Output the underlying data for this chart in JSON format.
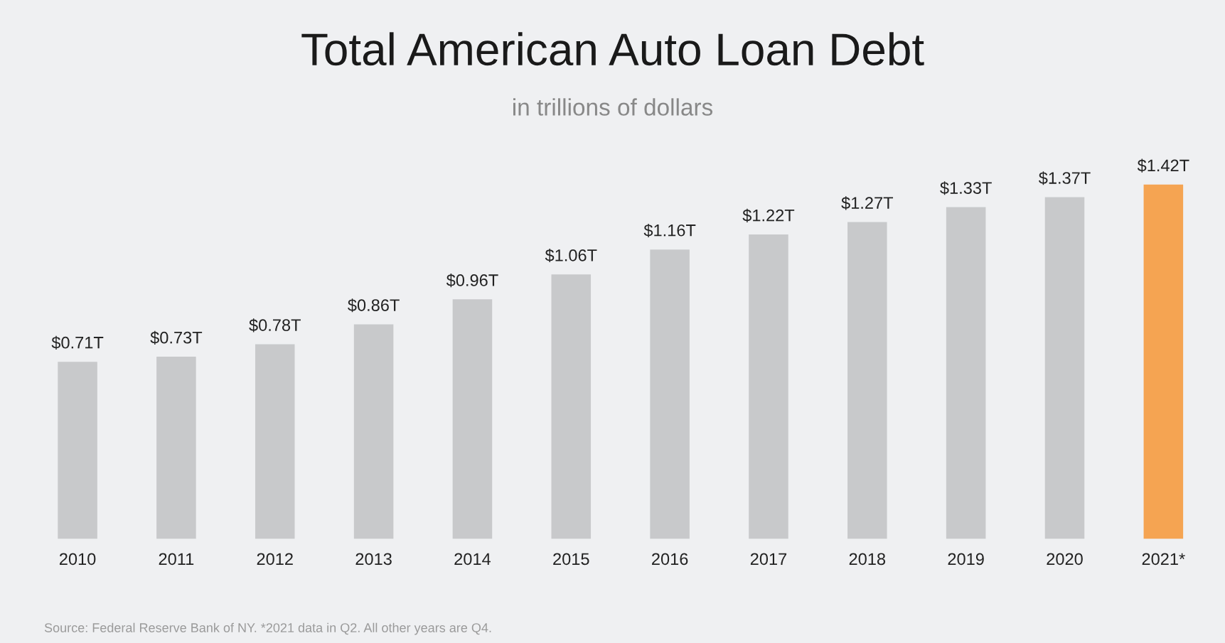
{
  "chart_data": {
    "type": "bar",
    "title": "Total American Auto Loan Debt",
    "subtitle": "in trillions of dollars",
    "categories": [
      "2010",
      "2011",
      "2012",
      "2013",
      "2014",
      "2015",
      "2016",
      "2017",
      "2018",
      "2019",
      "2020",
      "2021*"
    ],
    "values": [
      0.71,
      0.73,
      0.78,
      0.86,
      0.96,
      1.06,
      1.16,
      1.22,
      1.27,
      1.33,
      1.37,
      1.42
    ],
    "colors": [
      "#c8c9cb",
      "#c8c9cb",
      "#c8c9cb",
      "#c8c9cb",
      "#c8c9cb",
      "#c8c9cb",
      "#c8c9cb",
      "#c8c9cb",
      "#c8c9cb",
      "#c8c9cb",
      "#c8c9cb",
      "#f5a452"
    ],
    "value_labels": [
      "$0.71T",
      "$0.73T",
      "$0.78T",
      "$0.86T",
      "$0.96T",
      "$1.06T",
      "$1.16T",
      "$1.22T",
      "$1.27T",
      "$1.33T",
      "$1.37T",
      "$1.42T"
    ],
    "grid": false,
    "legend": false,
    "tick_labels": "x",
    "annotations": [
      "Source: Federal Reserve Bank of NY. *2021 data in Q2. All other years are Q4."
    ]
  }
}
